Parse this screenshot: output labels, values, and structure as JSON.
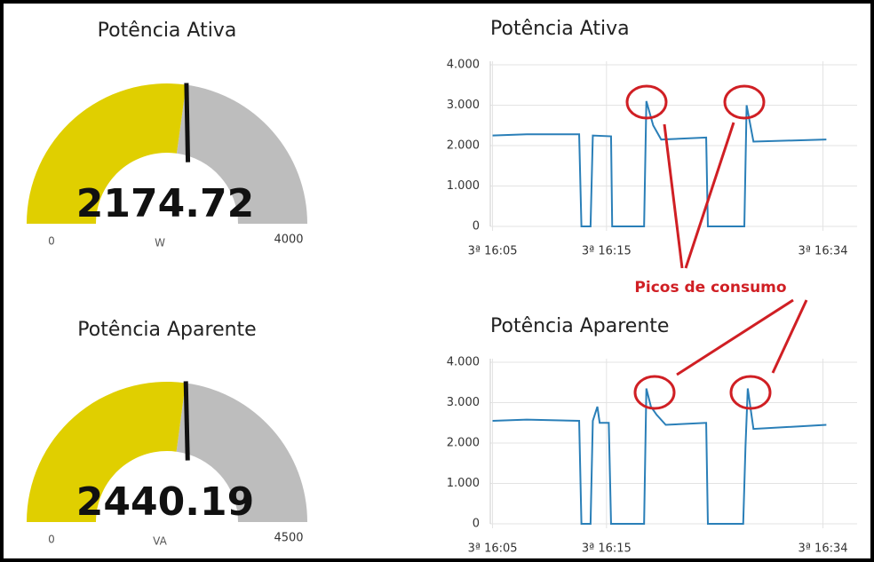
{
  "chart_data": [
    {
      "type": "gauge",
      "title": "Potência Ativa",
      "value": 2174.72,
      "min": 0,
      "max": 4000,
      "unit": "W",
      "color": "#e0cf00",
      "track_color": "#bdbdbd"
    },
    {
      "type": "line",
      "title": "Potência Ativa",
      "color": "#2a7fb8",
      "x": [
        965.0,
        968.0,
        972.6,
        972.8,
        973.6,
        973.8,
        975.4,
        975.5,
        978.3,
        978.5,
        979.1,
        979.8,
        983.75,
        983.9,
        987.1,
        987.3,
        987.9,
        994.3
      ],
      "values": [
        2250,
        2280,
        2280,
        0,
        0,
        2250,
        2230,
        0,
        0,
        3100,
        2500,
        2150,
        2200,
        0,
        0,
        3000,
        2100,
        2150
      ],
      "xlim": [
        964.8,
        997
      ],
      "xticks": [
        {
          "value": 965,
          "label": "3ª 16:05"
        },
        {
          "value": 975,
          "label": "3ª 16:15"
        },
        {
          "value": 994,
          "label": "3ª 16:34"
        }
      ],
      "ylim": [
        0,
        4000
      ],
      "yticks": [
        0,
        {
          "value": 1000,
          "label": "1.000"
        },
        {
          "value": 2000,
          "label": "2.000"
        },
        {
          "value": 3000,
          "label": "3.000"
        },
        {
          "value": 4000,
          "label": "4.000"
        }
      ],
      "grid": true
    },
    {
      "type": "gauge",
      "title": "Potência Aparente",
      "value": 2440.19,
      "min": 0,
      "max": 4500,
      "unit": "VA",
      "color": "#e0cf00",
      "track_color": "#bdbdbd"
    },
    {
      "type": "line",
      "title": "Potência Aparente",
      "color": "#2a7fb8",
      "x": [
        965.0,
        968.0,
        972.6,
        972.8,
        973.6,
        973.8,
        974.2,
        974.4,
        975.2,
        975.4,
        978.3,
        978.5,
        978.9,
        979.4,
        980.2,
        983.75,
        983.9,
        987.0,
        987.2,
        987.4,
        987.9,
        994.3
      ],
      "values": [
        2550,
        2580,
        2550,
        0,
        0,
        2550,
        2900,
        2500,
        2500,
        0,
        0,
        3350,
        2900,
        2700,
        2450,
        2500,
        0,
        0,
        1900,
        3350,
        2350,
        2450
      ],
      "xlim": [
        964.8,
        997
      ],
      "xticks": [
        {
          "value": 965,
          "label": "3ª 16:05"
        },
        {
          "value": 975,
          "label": "3ª 16:15"
        },
        {
          "value": 994,
          "label": "3ª 16:34"
        }
      ],
      "ylim": [
        0,
        4000
      ],
      "yticks": [
        0,
        {
          "value": 1000,
          "label": "1.000"
        },
        {
          "value": 2000,
          "label": "2.000"
        },
        {
          "value": 3000,
          "label": "3.000"
        },
        {
          "value": 4000,
          "label": "4.000"
        }
      ],
      "grid": true
    }
  ],
  "annotation": "Picos de consumo"
}
